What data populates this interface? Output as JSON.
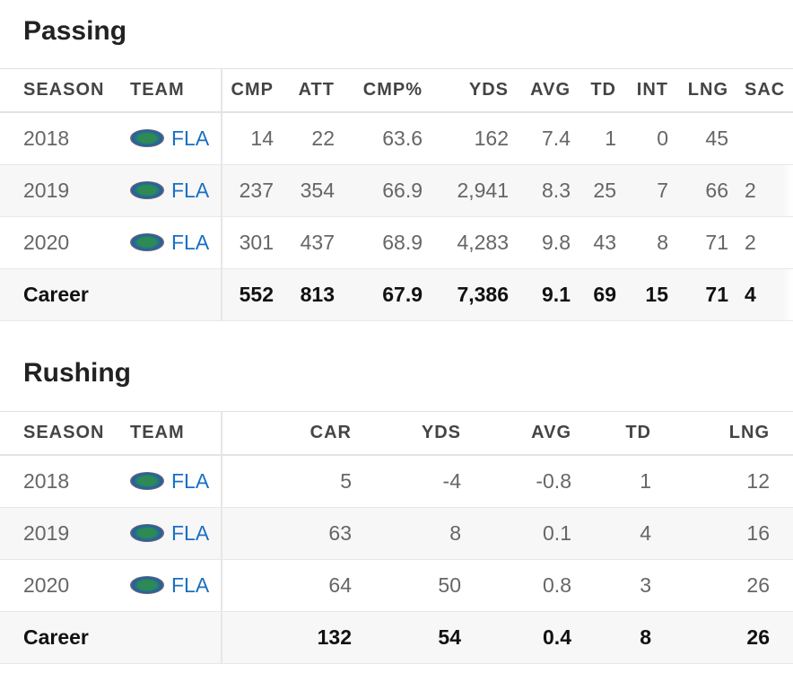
{
  "passing": {
    "title": "Passing",
    "headers": [
      "SEASON",
      "TEAM",
      "CMP",
      "ATT",
      "CMP%",
      "YDS",
      "AVG",
      "TD",
      "INT",
      "LNG",
      "SAC"
    ],
    "rows": [
      [
        "2018",
        "FLA",
        "14",
        "22",
        "63.6",
        "162",
        "7.4",
        "1",
        "0",
        "45",
        ""
      ],
      [
        "2019",
        "FLA",
        "237",
        "354",
        "66.9",
        "2,941",
        "8.3",
        "25",
        "7",
        "66",
        "2"
      ],
      [
        "2020",
        "FLA",
        "301",
        "437",
        "68.9",
        "4,283",
        "9.8",
        "43",
        "8",
        "71",
        "2"
      ]
    ],
    "career": [
      "Career",
      "",
      "552",
      "813",
      "67.9",
      "7,386",
      "9.1",
      "69",
      "15",
      "71",
      "4"
    ]
  },
  "rushing": {
    "title": "Rushing",
    "headers": [
      "SEASON",
      "TEAM",
      "CAR",
      "YDS",
      "AVG",
      "TD",
      "LNG"
    ],
    "rows": [
      [
        "2018",
        "FLA",
        "5",
        "-4",
        "-0.8",
        "1",
        "12"
      ],
      [
        "2019",
        "FLA",
        "63",
        "8",
        "0.1",
        "4",
        "16"
      ],
      [
        "2020",
        "FLA",
        "64",
        "50",
        "0.8",
        "3",
        "26"
      ]
    ],
    "career": [
      "Career",
      "",
      "132",
      "54",
      "0.4",
      "8",
      "26"
    ]
  },
  "colors": {
    "team_link": "#1a6fc4",
    "alt_row": "#f7f7f7"
  }
}
